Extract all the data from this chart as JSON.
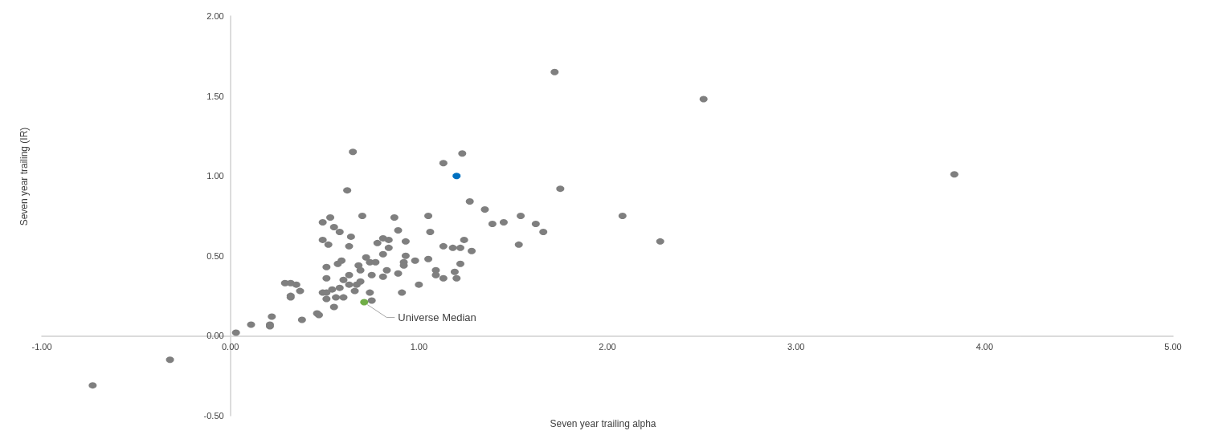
{
  "chart_data": {
    "type": "scatter",
    "xlabel": "Seven year trailing alpha",
    "ylabel": "Seven year trailing (IR)",
    "xlim": [
      -1,
      5
    ],
    "xticks": [
      {
        "value": -1,
        "label": "-1.00"
      },
      {
        "value": 0,
        "label": "0.00"
      },
      {
        "value": 1,
        "label": "1.00"
      },
      {
        "value": 2,
        "label": "2.00"
      },
      {
        "value": 3,
        "label": "3.00"
      },
      {
        "value": 4,
        "label": "4.00"
      },
      {
        "value": 5,
        "label": "5.00"
      }
    ],
    "ylim": [
      -0.5,
      2
    ],
    "yticks": [
      {
        "value": -0.5,
        "label": "-0.50"
      },
      {
        "value": 0,
        "label": "0.00"
      },
      {
        "value": 0.5,
        "label": "0.50"
      },
      {
        "value": 1,
        "label": "1.00"
      },
      {
        "value": 1.5,
        "label": "1.50"
      },
      {
        "value": 2,
        "label": "2.00"
      }
    ],
    "grid": false,
    "legend": false,
    "marker": "circle",
    "series": [
      {
        "color": "#7f7f7f",
        "x": [
          0.65,
          0.62,
          0.49,
          0.53,
          0.55,
          0.58,
          0.64,
          0.7,
          0.87,
          0.89,
          0.49,
          0.52,
          0.63,
          0.78,
          0.81,
          0.84,
          0.84,
          0.93,
          0.81,
          0.72,
          0.74,
          0.77,
          0.93,
          0.92,
          0.92,
          0.98,
          0.59,
          0.57,
          0.51,
          0.68,
          0.69,
          0.83,
          0.75,
          0.81,
          0.89,
          0.51,
          0.6,
          0.63,
          0.63,
          0.67,
          0.69,
          0.58,
          0.54,
          0.49,
          0.51,
          0.66,
          0.74,
          0.91,
          0.29,
          0.32,
          0.35,
          0.37,
          0.32,
          0.32,
          0.51,
          0.56,
          0.6,
          0.75,
          0.55,
          0.46,
          0.47,
          0.38,
          0.22,
          0.21,
          0.21,
          0.11,
          0.03,
          1.23,
          1.13,
          1.75,
          1.27,
          1.35,
          1.05,
          1.54,
          1.39,
          1.45,
          1.62,
          1.66,
          1.06,
          1.24,
          1.13,
          1.18,
          1.22,
          1.53,
          1.28,
          1.05,
          1.22,
          1.09,
          1.09,
          1.19,
          1.13,
          1.2,
          1.0,
          1.72,
          2.51,
          3.84,
          2.08,
          2.28,
          -0.73,
          -0.32
        ],
        "values": [
          1.15,
          0.91,
          0.71,
          0.74,
          0.68,
          0.65,
          0.62,
          0.75,
          0.74,
          0.66,
          0.6,
          0.57,
          0.56,
          0.58,
          0.61,
          0.6,
          0.55,
          0.59,
          0.51,
          0.49,
          0.46,
          0.46,
          0.5,
          0.46,
          0.44,
          0.47,
          0.47,
          0.45,
          0.43,
          0.44,
          0.41,
          0.41,
          0.38,
          0.37,
          0.39,
          0.36,
          0.35,
          0.38,
          0.32,
          0.32,
          0.34,
          0.3,
          0.29,
          0.27,
          0.27,
          0.28,
          0.27,
          0.27,
          0.33,
          0.33,
          0.32,
          0.28,
          0.25,
          0.24,
          0.23,
          0.24,
          0.24,
          0.22,
          0.18,
          0.14,
          0.13,
          0.1,
          0.12,
          0.06,
          0.07,
          0.07,
          0.02,
          1.14,
          1.08,
          0.92,
          0.84,
          0.79,
          0.75,
          0.75,
          0.7,
          0.71,
          0.7,
          0.65,
          0.65,
          0.6,
          0.56,
          0.55,
          0.55,
          0.57,
          0.53,
          0.48,
          0.45,
          0.41,
          0.38,
          0.4,
          0.36,
          0.36,
          0.32,
          1.65,
          1.48,
          1.01,
          0.75,
          0.59,
          -0.31,
          -0.15
        ]
      },
      {
        "color": "#0070c0",
        "x": [
          1.2
        ],
        "values": [
          1.0
        ]
      },
      {
        "name": "Universe Median",
        "color": "#70ad47",
        "x": [
          0.71
        ],
        "values": [
          0.21
        ]
      }
    ]
  }
}
